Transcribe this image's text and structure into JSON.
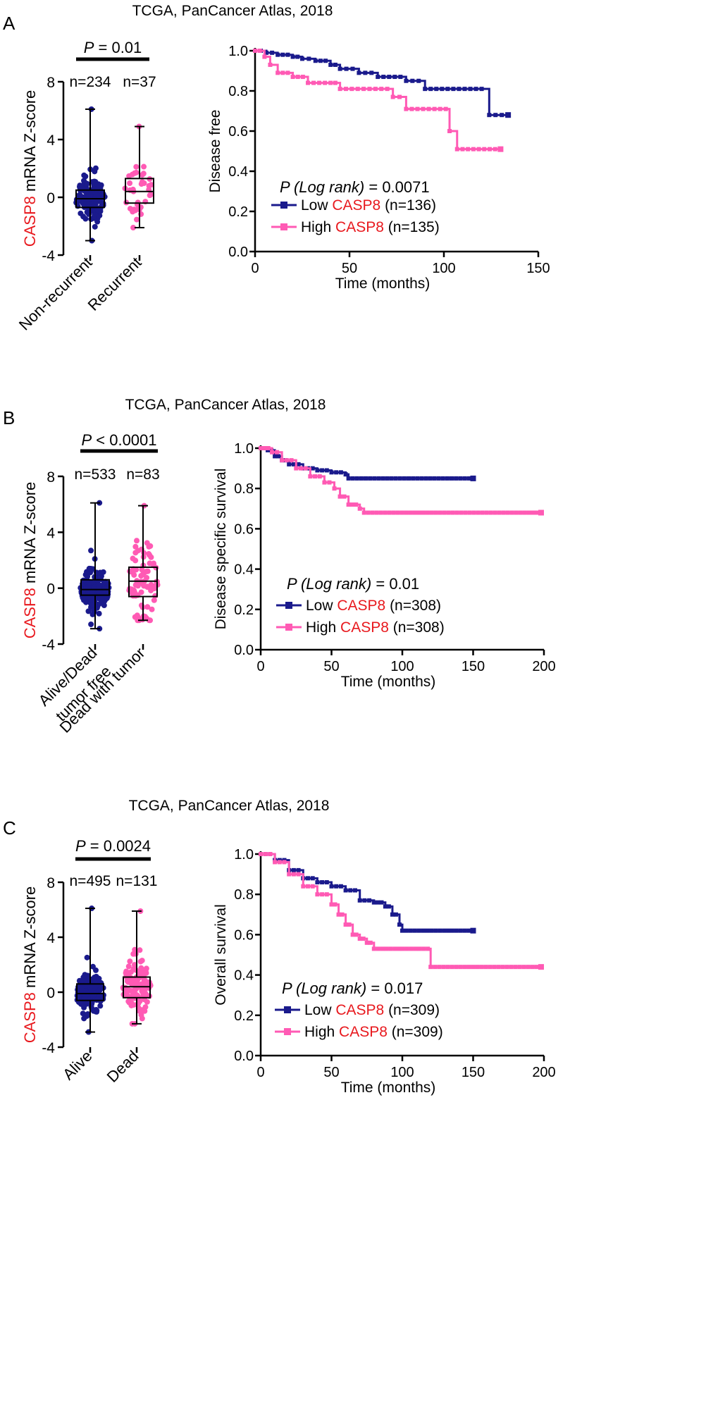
{
  "panels": [
    {
      "letter": "A",
      "title": "TCGA, PanCancer Atlas, 2018"
    },
    {
      "letter": "B",
      "title": "TCGA, PanCancer Atlas, 2018"
    },
    {
      "letter": "C",
      "title": "TCGA, PanCancer Atlas, 2018"
    }
  ],
  "colors": {
    "low": "#1a1a8c",
    "high": "#ff5ab4",
    "gene": "#e8191e",
    "black": "#000000"
  },
  "chart_data": [
    {
      "type": "box",
      "panel": "A",
      "title": "TCGA, PanCancer Atlas, 2018",
      "ylabel_gene": "CASP8",
      "ylabel_rest": " mRNA Z-score",
      "ylim": [
        -4,
        8
      ],
      "yticks": [
        -4,
        0,
        4,
        8
      ],
      "p_label": "P",
      "p_value": " = 0.01",
      "groups": [
        {
          "name": "Non-recurrent",
          "label_lines": [
            "Non-recurrent"
          ],
          "n_label": "n=234",
          "n": 234,
          "color": "#1a1a8c",
          "min": -3.0,
          "q1": -0.7,
          "median": -0.1,
          "q3": 0.5,
          "max": 6.1
        },
        {
          "name": "Recurrent",
          "label_lines": [
            "Recurrent"
          ],
          "n_label": "n=37",
          "n": 37,
          "color": "#ff5ab4",
          "min": -2.1,
          "q1": -0.4,
          "median": 0.4,
          "q3": 1.3,
          "max": 4.9
        }
      ]
    },
    {
      "type": "line",
      "subtype": "kaplan-meier",
      "panel": "A",
      "ylabel": "Disease free",
      "xlabel": "Time (months)",
      "xlim": [
        0,
        150
      ],
      "xticks": [
        0,
        50,
        100,
        150
      ],
      "ylim": [
        0,
        1
      ],
      "yticks": [
        "0.0",
        "0.2",
        "0.4",
        "0.6",
        "0.8",
        "1.0"
      ],
      "p_label": "P (Log rank)",
      "p_value": " = 0.0071",
      "series": [
        {
          "name": "Low",
          "gene": "CASP8",
          "n_label": "(n=136)",
          "color": "#1a1a8c",
          "points": [
            [
              0,
              1.0
            ],
            [
              6,
              0.99
            ],
            [
              12,
              0.98
            ],
            [
              20,
              0.97
            ],
            [
              25,
              0.96
            ],
            [
              32,
              0.95
            ],
            [
              40,
              0.93
            ],
            [
              45,
              0.91
            ],
            [
              55,
              0.89
            ],
            [
              65,
              0.87
            ],
            [
              80,
              0.85
            ],
            [
              90,
              0.81
            ],
            [
              120,
              0.81
            ],
            [
              124,
              0.68
            ],
            [
              134,
              0.68
            ]
          ]
        },
        {
          "name": "High",
          "gene": "CASP8",
          "n_label": "(n=135)",
          "color": "#ff5ab4",
          "points": [
            [
              0,
              1.0
            ],
            [
              5,
              0.97
            ],
            [
              8,
              0.93
            ],
            [
              12,
              0.89
            ],
            [
              20,
              0.87
            ],
            [
              28,
              0.84
            ],
            [
              40,
              0.84
            ],
            [
              45,
              0.81
            ],
            [
              70,
              0.81
            ],
            [
              73,
              0.77
            ],
            [
              80,
              0.71
            ],
            [
              101,
              0.71
            ],
            [
              103,
              0.6
            ],
            [
              107,
              0.51
            ],
            [
              130,
              0.51
            ]
          ]
        }
      ]
    },
    {
      "type": "box",
      "panel": "B",
      "title": "TCGA, PanCancer Atlas, 2018",
      "ylabel_gene": "CASP8",
      "ylabel_rest": " mRNA Z-score",
      "ylim": [
        -4,
        8
      ],
      "yticks": [
        -4,
        0,
        4,
        8
      ],
      "p_label": "P",
      "p_value": " < 0.0001",
      "groups": [
        {
          "name": "Alive/Dead tumor free",
          "label_lines": [
            "Alive/Dead",
            "tumor free"
          ],
          "n_label": "n=533",
          "n": 533,
          "color": "#1a1a8c",
          "min": -2.9,
          "q1": -0.5,
          "median": -0.1,
          "q3": 0.6,
          "max": 6.1
        },
        {
          "name": "Dead with tumor",
          "label_lines": [
            "Dead with tumor"
          ],
          "n_label": "n=83",
          "n": 83,
          "color": "#ff5ab4",
          "min": -2.3,
          "q1": -0.6,
          "median": 0.5,
          "q3": 1.5,
          "max": 5.9
        }
      ]
    },
    {
      "type": "line",
      "subtype": "kaplan-meier",
      "panel": "B",
      "ylabel": "Disease specific survival",
      "xlabel": "Time (months)",
      "xlim": [
        0,
        200
      ],
      "xticks": [
        0,
        50,
        100,
        150,
        200
      ],
      "ylim": [
        0,
        1
      ],
      "yticks": [
        "0.0",
        "0.2",
        "0.4",
        "0.6",
        "0.8",
        "1.0"
      ],
      "p_label": "P (Log rank)",
      "p_value": " = 0.01",
      "series": [
        {
          "name": "Low",
          "gene": "CASP8",
          "n_label": "(n=308)",
          "color": "#1a1a8c",
          "points": [
            [
              0,
              1.0
            ],
            [
              5,
              0.99
            ],
            [
              10,
              0.96
            ],
            [
              15,
              0.94
            ],
            [
              20,
              0.92
            ],
            [
              30,
              0.9
            ],
            [
              40,
              0.89
            ],
            [
              50,
              0.88
            ],
            [
              60,
              0.87
            ],
            [
              62,
              0.85
            ],
            [
              150,
              0.85
            ]
          ]
        },
        {
          "name": "High",
          "gene": "CASP8",
          "n_label": "(n=308)",
          "color": "#ff5ab4",
          "points": [
            [
              0,
              1.0
            ],
            [
              8,
              0.98
            ],
            [
              15,
              0.94
            ],
            [
              25,
              0.9
            ],
            [
              35,
              0.86
            ],
            [
              45,
              0.83
            ],
            [
              52,
              0.8
            ],
            [
              56,
              0.76
            ],
            [
              62,
              0.72
            ],
            [
              70,
              0.7
            ],
            [
              73,
              0.68
            ],
            [
              198,
              0.68
            ]
          ]
        }
      ]
    },
    {
      "type": "box",
      "panel": "C",
      "title": "TCGA, PanCancer Atlas, 2018",
      "ylabel_gene": "CASP8",
      "ylabel_rest": " mRNA Z-score",
      "ylim": [
        -4,
        8
      ],
      "yticks": [
        -4,
        0,
        4,
        8
      ],
      "p_label": "P",
      "p_value": " = 0.0024",
      "groups": [
        {
          "name": "Alive",
          "label_lines": [
            "Alive"
          ],
          "n_label": "n=495",
          "n": 495,
          "color": "#1a1a8c",
          "min": -2.9,
          "q1": -0.6,
          "median": -0.1,
          "q3": 0.6,
          "max": 6.1
        },
        {
          "name": "Dead",
          "label_lines": [
            "Dead"
          ],
          "n_label": "n=131",
          "n": 131,
          "color": "#ff5ab4",
          "min": -2.3,
          "q1": -0.4,
          "median": 0.4,
          "q3": 1.1,
          "max": 5.9
        }
      ]
    },
    {
      "type": "line",
      "subtype": "kaplan-meier",
      "panel": "C",
      "ylabel": "Overall survival",
      "xlabel": "Time (months)",
      "xlim": [
        0,
        200
      ],
      "xticks": [
        0,
        50,
        100,
        150,
        200
      ],
      "ylim": [
        0,
        1
      ],
      "yticks": [
        "0.0",
        "0.2",
        "0.4",
        "0.6",
        "0.8",
        "1.0"
      ],
      "p_label": "P (Log rank)",
      "p_value": " = 0.017",
      "series": [
        {
          "name": "Low",
          "gene": "CASP8",
          "n_label": "(n=309)",
          "color": "#1a1a8c",
          "points": [
            [
              0,
              1.0
            ],
            [
              10,
              0.97
            ],
            [
              20,
              0.92
            ],
            [
              30,
              0.88
            ],
            [
              40,
              0.86
            ],
            [
              50,
              0.84
            ],
            [
              60,
              0.82
            ],
            [
              70,
              0.77
            ],
            [
              80,
              0.76
            ],
            [
              88,
              0.74
            ],
            [
              93,
              0.7
            ],
            [
              98,
              0.65
            ],
            [
              100,
              0.62
            ],
            [
              150,
              0.62
            ]
          ]
        },
        {
          "name": "High",
          "gene": "CASP8",
          "n_label": "(n=309)",
          "color": "#ff5ab4",
          "points": [
            [
              0,
              1.0
            ],
            [
              10,
              0.96
            ],
            [
              20,
              0.9
            ],
            [
              30,
              0.84
            ],
            [
              40,
              0.8
            ],
            [
              50,
              0.75
            ],
            [
              55,
              0.7
            ],
            [
              60,
              0.65
            ],
            [
              65,
              0.6
            ],
            [
              70,
              0.58
            ],
            [
              75,
              0.56
            ],
            [
              80,
              0.53
            ],
            [
              118,
              0.53
            ],
            [
              120,
              0.44
            ],
            [
              198,
              0.44
            ]
          ]
        }
      ]
    }
  ]
}
